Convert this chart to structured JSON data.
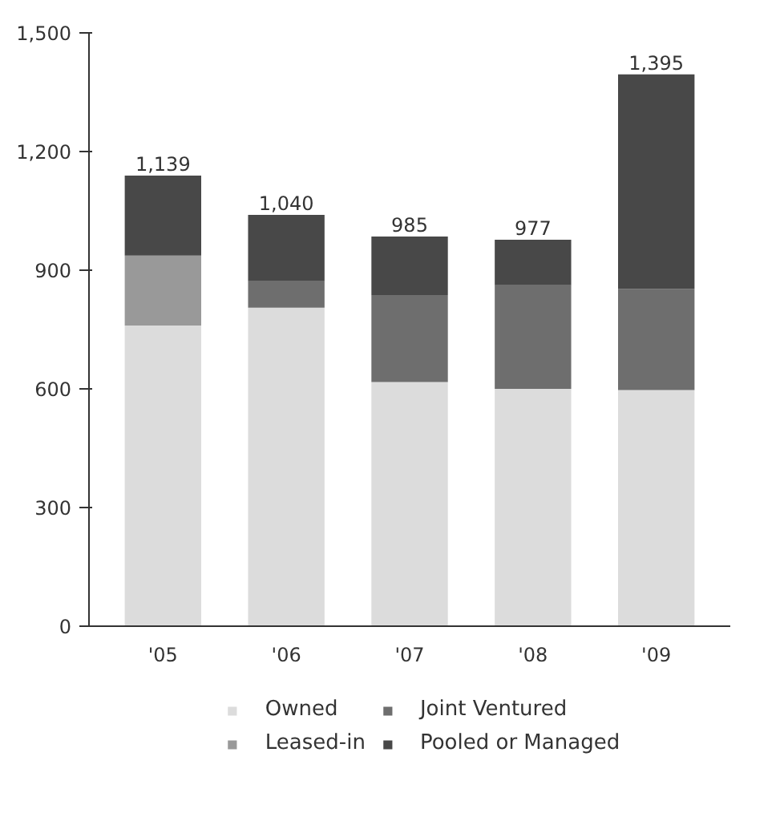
{
  "chart_data": {
    "type": "bar",
    "stacked": true,
    "categories": [
      "'05",
      "'06",
      "'07",
      "'08",
      "'09"
    ],
    "series": [
      {
        "name": "Owned",
        "color": "#dcdcdc",
        "values": [
          760,
          805,
          617,
          600,
          597
        ]
      },
      {
        "name": "Leased-in",
        "color": "#999999",
        "values": [
          177,
          0,
          0,
          0,
          0
        ]
      },
      {
        "name": "Joint Ventured",
        "color": "#6e6e6e",
        "values": [
          0,
          67,
          220,
          262,
          256
        ]
      },
      {
        "name": "Pooled or Managed",
        "color": "#484848",
        "values": [
          202,
          168,
          148,
          115,
          542
        ]
      }
    ],
    "totals": [
      "1,139",
      "1,040",
      "985",
      "977",
      "1,395"
    ],
    "ylim": [
      0,
      1500
    ],
    "yticks": [
      {
        "value": 0,
        "label": "0"
      },
      {
        "value": 300,
        "label": "300"
      },
      {
        "value": 600,
        "label": "600"
      },
      {
        "value": 900,
        "label": "900"
      },
      {
        "value": 1200,
        "label": "1,200"
      },
      {
        "value": 1500,
        "label": "1,500"
      }
    ],
    "grid": false,
    "legend": "bottom"
  }
}
